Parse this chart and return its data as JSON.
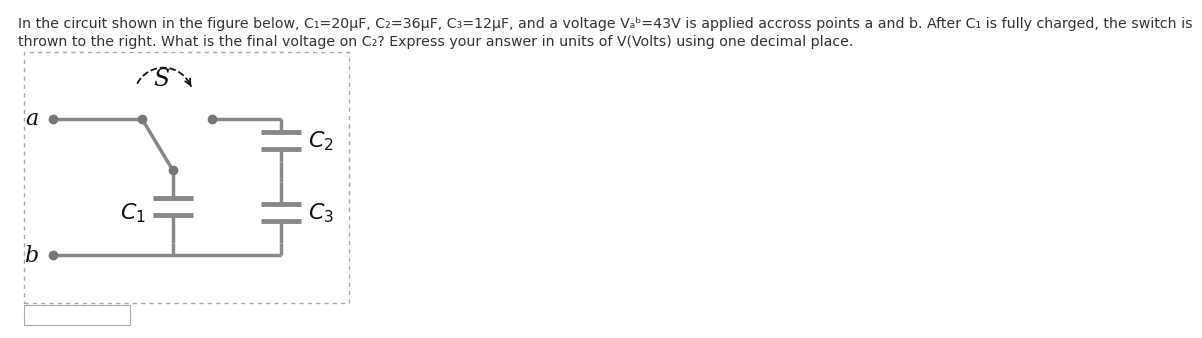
{
  "title_line1": "In the circuit shown in the figure below, C₁=20µF, C₂=36µF, C₃=12µF, and a voltage Vₐᵇ=43V is applied accross points a and b. After C₁ is fully charged, the switch is",
  "title_line2": "thrown to the right. What is the final voltage on C₂? Express your answer in units of V(Volts) using one decimal place.",
  "bg_color": "#ffffff",
  "wire_color": "#888888",
  "dot_color": "#777777",
  "text_color": "#333333",
  "label_color": "#111111"
}
